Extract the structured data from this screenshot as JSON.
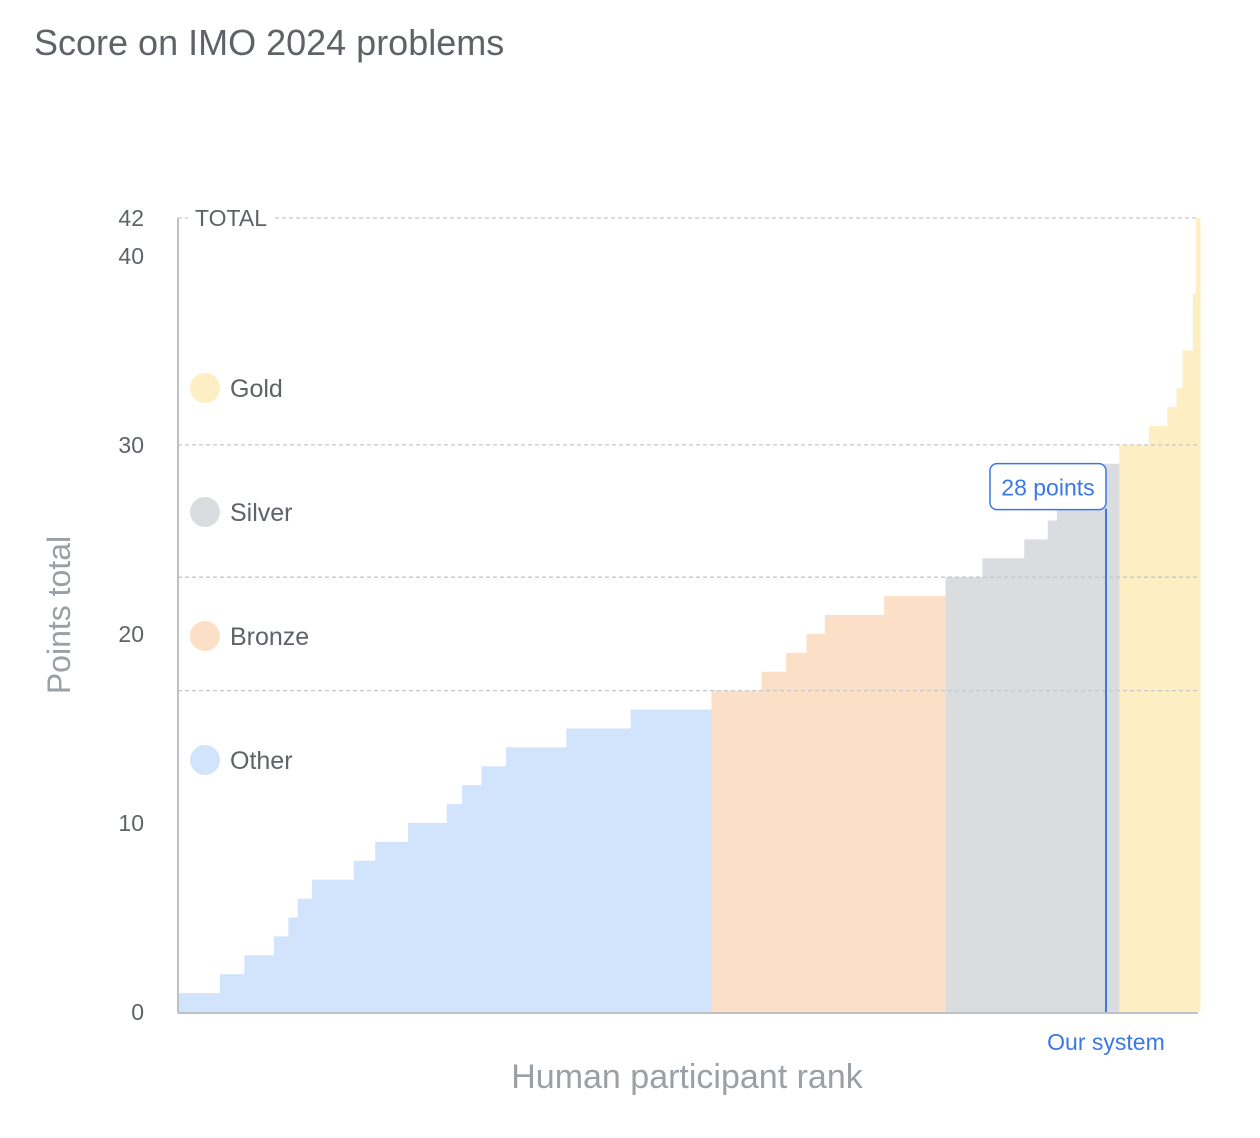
{
  "chart_data": {
    "type": "area",
    "title": "Score on IMO 2024 problems",
    "xlabel": "Human participant rank",
    "ylabel": "Points total",
    "ylim": [
      0,
      42
    ],
    "xlim": [
      0,
      100
    ],
    "yticks": [
      "0",
      "10",
      "20",
      "30",
      "40",
      "42"
    ],
    "total_label": "TOTAL",
    "grid": "dashed lines at 42, 30, 23, 17",
    "thresholds": [
      42,
      30,
      23,
      17
    ],
    "legend_position": "left",
    "series": [
      {
        "name": "Other",
        "color": "#d2e3fc",
        "steps": [
          {
            "from": 0,
            "to": 4.1,
            "points": 1
          },
          {
            "from": 4.1,
            "to": 6.5,
            "points": 2
          },
          {
            "from": 6.5,
            "to": 9.4,
            "points": 3
          },
          {
            "from": 9.4,
            "to": 10.8,
            "points": 4
          },
          {
            "from": 10.8,
            "to": 11.7,
            "points": 5
          },
          {
            "from": 11.7,
            "to": 13.1,
            "points": 6
          },
          {
            "from": 13.1,
            "to": 17.2,
            "points": 7
          },
          {
            "from": 17.2,
            "to": 19.3,
            "points": 8
          },
          {
            "from": 19.3,
            "to": 22.5,
            "points": 9
          },
          {
            "from": 22.5,
            "to": 26.3,
            "points": 10
          },
          {
            "from": 26.3,
            "to": 27.8,
            "points": 11
          },
          {
            "from": 27.8,
            "to": 29.7,
            "points": 12
          },
          {
            "from": 29.7,
            "to": 32.1,
            "points": 13
          },
          {
            "from": 32.1,
            "to": 38.0,
            "points": 14
          },
          {
            "from": 38.0,
            "to": 44.3,
            "points": 15
          },
          {
            "from": 44.3,
            "to": 52.2,
            "points": 16
          }
        ]
      },
      {
        "name": "Bronze",
        "color": "#fcdfc7",
        "steps": [
          {
            "from": 52.2,
            "to": 57.1,
            "points": 17
          },
          {
            "from": 57.1,
            "to": 59.5,
            "points": 18
          },
          {
            "from": 59.5,
            "to": 61.5,
            "points": 19
          },
          {
            "from": 61.5,
            "to": 63.3,
            "points": 20
          },
          {
            "from": 63.3,
            "to": 69.1,
            "points": 21
          },
          {
            "from": 69.1,
            "to": 75.1,
            "points": 22
          }
        ]
      },
      {
        "name": "Silver",
        "color": "#dadce0",
        "steps": [
          {
            "from": 75.1,
            "to": 78.7,
            "points": 23
          },
          {
            "from": 78.7,
            "to": 82.8,
            "points": 24
          },
          {
            "from": 82.8,
            "to": 85.1,
            "points": 25
          },
          {
            "from": 85.1,
            "to": 86.0,
            "points": 26
          },
          {
            "from": 86.0,
            "to": 87.3,
            "points": 27
          },
          {
            "from": 87.3,
            "to": 89.2,
            "points": 28
          },
          {
            "from": 89.2,
            "to": 92.1,
            "points": 29
          }
        ]
      },
      {
        "name": "Gold",
        "color": "#fdefc3",
        "steps": [
          {
            "from": 92.1,
            "to": 95.0,
            "points": 30
          },
          {
            "from": 95.0,
            "to": 96.8,
            "points": 31
          },
          {
            "from": 96.8,
            "to": 97.7,
            "points": 32
          },
          {
            "from": 97.7,
            "to": 98.3,
            "points": 33
          },
          {
            "from": 98.3,
            "to": 99.3,
            "points": 35
          },
          {
            "from": 99.3,
            "to": 99.6,
            "points": 38
          },
          {
            "from": 99.6,
            "to": 100,
            "points": 42
          }
        ]
      }
    ],
    "legend_order": [
      "Gold",
      "Silver",
      "Bronze",
      "Other"
    ],
    "annotation": {
      "label": "28 points",
      "x": 90.8,
      "points": 28,
      "marker_label": "Our system",
      "color": "#3b78e7"
    }
  }
}
